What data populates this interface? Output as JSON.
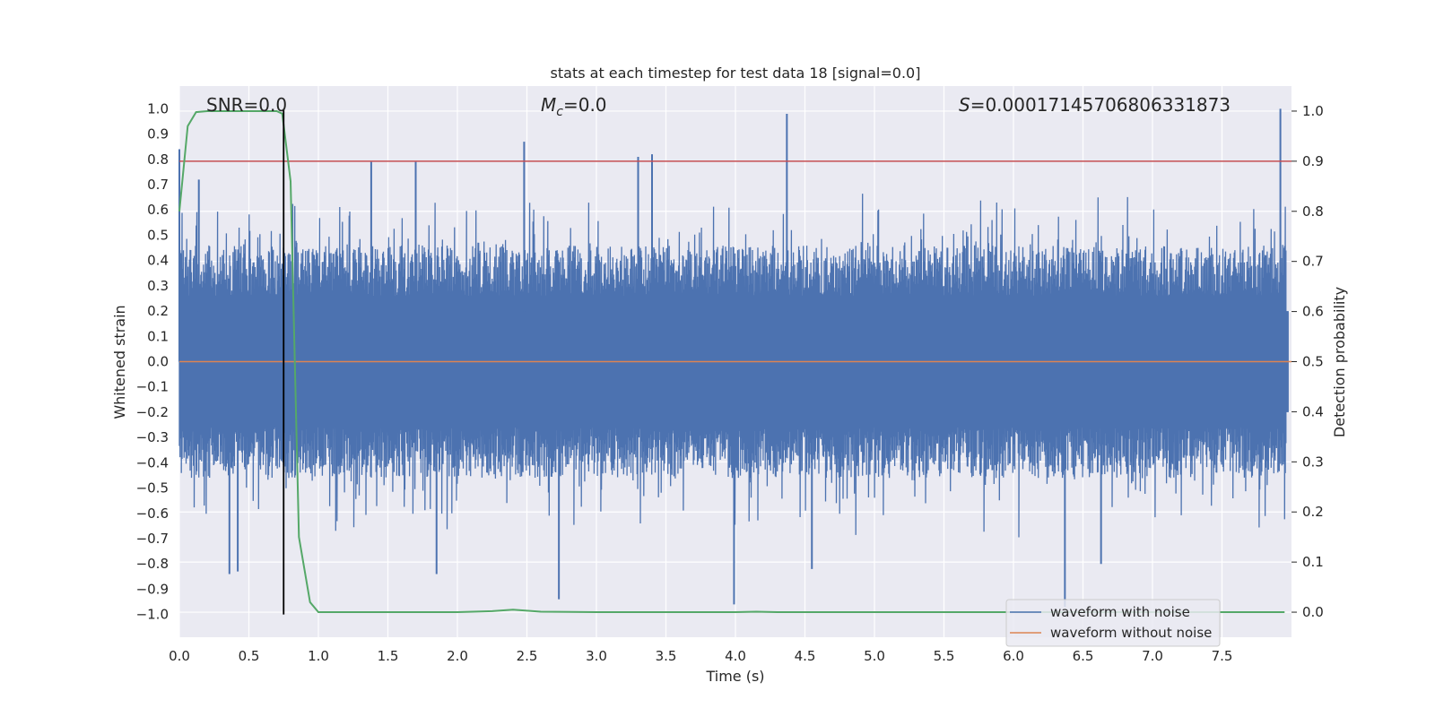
{
  "chart_data": {
    "type": "line",
    "title": "stats at each timestep for test data 18 [signal=0.0]",
    "xlabel": "Time (s)",
    "ylabel_left": "Whitened strain",
    "ylabel_right": "Detection probability",
    "xlim": [
      0,
      8
    ],
    "ylim_left": [
      -1.09,
      1.09
    ],
    "ylim_right": [
      -0.05,
      1.05
    ],
    "x_ticks": [
      "0.0",
      "0.5",
      "1.0",
      "1.5",
      "2.0",
      "2.5",
      "3.0",
      "3.5",
      "4.0",
      "4.5",
      "5.0",
      "5.5",
      "6.0",
      "6.5",
      "7.0",
      "7.5"
    ],
    "y_ticks_left": [
      "1.0",
      "0.9",
      "0.8",
      "0.7",
      "0.6",
      "0.5",
      "0.4",
      "0.3",
      "0.2",
      "0.1",
      "0.0",
      "−0.1",
      "−0.2",
      "−0.3",
      "−0.4",
      "−0.5",
      "−0.6",
      "−0.7",
      "−0.8",
      "−0.9",
      "−1.0"
    ],
    "y_ticks_right": [
      "1.0",
      "0.9",
      "0.8",
      "0.7",
      "0.6",
      "0.5",
      "0.4",
      "0.3",
      "0.2",
      "0.1",
      "0.0"
    ],
    "grid": true,
    "legend_position": "lower-right",
    "annotations": {
      "snr": "SNR=0.0",
      "mc_symbol": "M",
      "mc_sub": "c",
      "mc_value": "=0.0",
      "s_symbol": "S",
      "s_value": "=0.00017145706806331873"
    },
    "series": [
      {
        "name": "waveform with noise",
        "axis": "left",
        "color": "#4c72b0",
        "description": "dense whitened noise strain, bulk within about ±0.4 with occasional spikes",
        "envelope_peaks": [
          {
            "x": 0.0,
            "y": 0.84
          },
          {
            "x": 0.14,
            "y": 0.72
          },
          {
            "x": 0.36,
            "y": -0.84
          },
          {
            "x": 0.42,
            "y": -0.83
          },
          {
            "x": 1.38,
            "y": 0.79
          },
          {
            "x": 1.7,
            "y": 0.79
          },
          {
            "x": 1.85,
            "y": -0.84
          },
          {
            "x": 2.48,
            "y": 0.87
          },
          {
            "x": 2.73,
            "y": -0.94
          },
          {
            "x": 3.3,
            "y": 0.81
          },
          {
            "x": 3.4,
            "y": 0.82
          },
          {
            "x": 3.99,
            "y": -0.96
          },
          {
            "x": 4.37,
            "y": 0.98
          },
          {
            "x": 4.55,
            "y": -0.82
          },
          {
            "x": 6.37,
            "y": -0.97
          },
          {
            "x": 6.63,
            "y": -0.8
          },
          {
            "x": 7.92,
            "y": 1.0
          }
        ]
      },
      {
        "name": "waveform without noise",
        "axis": "left",
        "color": "#dd8452",
        "x": [
          0,
          8
        ],
        "y": [
          0.0,
          0.0
        ]
      },
      {
        "name": "detection probability",
        "axis": "right",
        "color": "#55a868",
        "x": [
          0.0,
          0.06,
          0.12,
          0.2,
          0.3,
          0.4,
          0.5,
          0.6,
          0.7,
          0.74,
          0.8,
          0.86,
          0.94,
          1.0,
          1.5,
          2.0,
          2.25,
          2.4,
          2.6,
          3.0,
          3.5,
          4.0,
          4.15,
          4.3,
          5.0,
          6.0,
          7.0,
          7.95
        ],
        "y": [
          0.8,
          0.97,
          0.998,
          1.0,
          1.0,
          1.0,
          1.0,
          1.0,
          1.0,
          0.995,
          0.86,
          0.15,
          0.02,
          0.0,
          0.0,
          0.0,
          0.002,
          0.005,
          0.001,
          0.0,
          0.0,
          0.0,
          0.001,
          0.0,
          0.0,
          0.0,
          0.0,
          0.0
        ]
      }
    ],
    "threshold_line": {
      "axis": "right",
      "y": 0.9,
      "color": "#c44e52"
    },
    "marker_line": {
      "axis": "left",
      "x": 0.75,
      "y_range": [
        -1.0,
        1.0
      ],
      "color": "#000000"
    }
  }
}
